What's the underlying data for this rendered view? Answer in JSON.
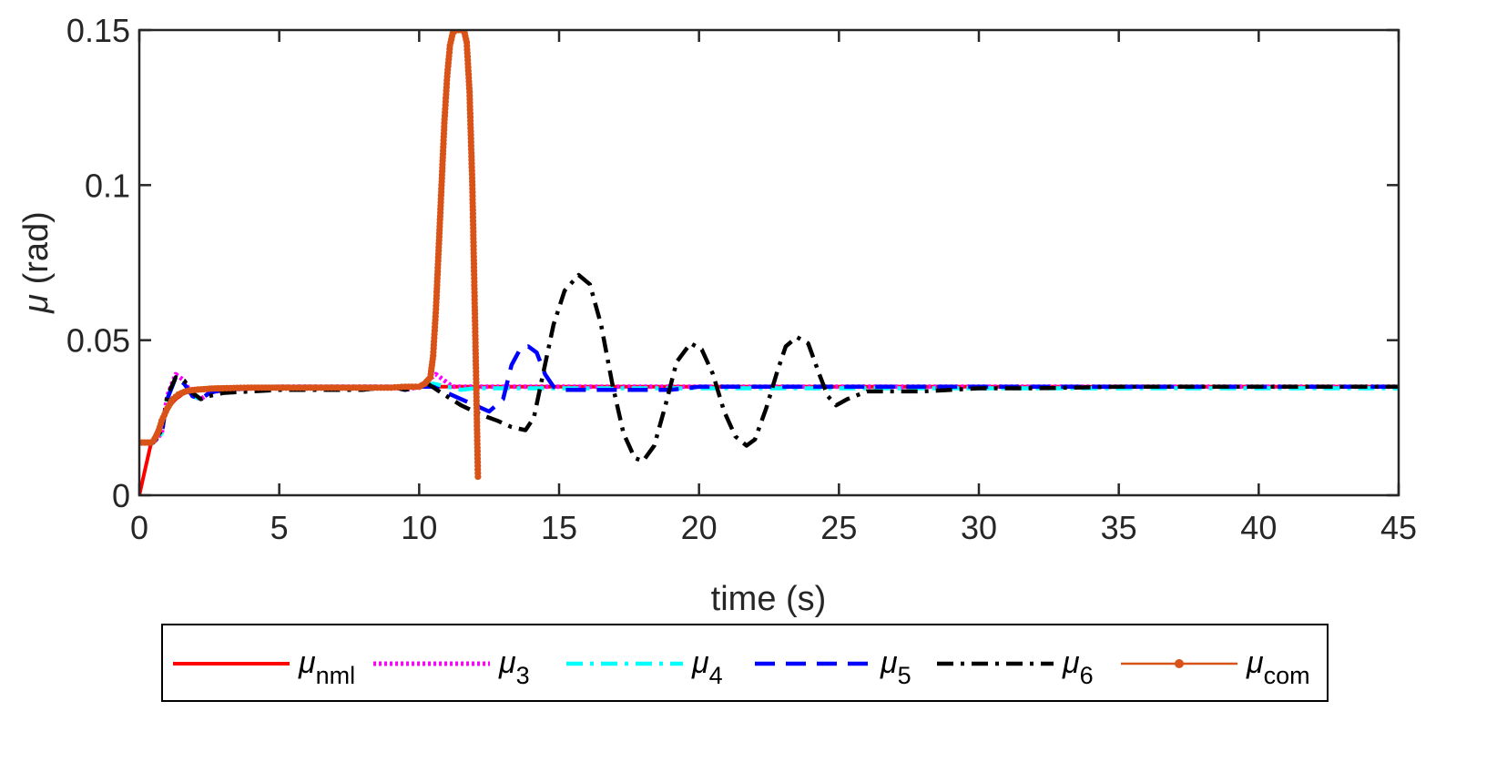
{
  "chart_data": {
    "type": "line",
    "xlabel": "time (s)",
    "ylabel_symbol": "μ",
    "ylabel_unit": " (rad)",
    "xlim": [
      0,
      45
    ],
    "ylim": [
      0,
      0.15
    ],
    "xticks": [
      0,
      5,
      10,
      15,
      20,
      25,
      30,
      35,
      40,
      45
    ],
    "xtick_labels": [
      "0",
      "5",
      "10",
      "15",
      "20",
      "25",
      "30",
      "35",
      "40",
      "45"
    ],
    "yticks": [
      0,
      0.05,
      0.1,
      0.15
    ],
    "ytick_labels": [
      "0",
      "0.05",
      "0.1",
      "0.15"
    ],
    "grid": false,
    "legend_position": "bottom, outside, horizontal",
    "series": [
      {
        "name": "μnml",
        "legend_base": "μ",
        "legend_sub": "nml",
        "color": "#ff0000",
        "style": "solid",
        "x": [
          0,
          0.2,
          0.4,
          0.7,
          1.0,
          1.3,
          1.6,
          2.0,
          2.5,
          3,
          4,
          5,
          6,
          7,
          8,
          9,
          10,
          10.5,
          11,
          11.5,
          12,
          12.5,
          13,
          14,
          15,
          16,
          17,
          18,
          19,
          20,
          22,
          24,
          26,
          28,
          30,
          35,
          40,
          45
        ],
        "y": [
          0,
          0.008,
          0.016,
          0.022,
          0.028,
          0.031,
          0.033,
          0.034,
          0.0345,
          0.0348,
          0.035,
          0.035,
          0.035,
          0.035,
          0.035,
          0.035,
          0.035,
          0.035,
          0.035,
          0.035,
          0.035,
          0.035,
          0.035,
          0.035,
          0.035,
          0.035,
          0.035,
          0.035,
          0.035,
          0.035,
          0.035,
          0.035,
          0.035,
          0.035,
          0.035,
          0.035,
          0.035,
          0.035
        ]
      },
      {
        "name": "μ3",
        "legend_base": "μ",
        "legend_sub": "3",
        "color": "#ff00ff",
        "style": "dotted",
        "x": [
          0,
          0.3,
          0.5,
          0.8,
          1.0,
          1.3,
          1.6,
          1.9,
          2.2,
          2.5,
          3,
          4,
          5,
          6,
          7,
          8,
          9,
          9.5,
          10,
          10.3,
          10.6,
          10.9,
          11.2,
          11.6,
          12,
          13,
          14,
          15,
          16,
          17,
          18,
          19,
          20,
          22,
          24,
          26,
          28,
          30,
          35,
          40,
          45
        ],
        "y": [
          0.017,
          0.017,
          0.017,
          0.02,
          0.032,
          0.039,
          0.037,
          0.032,
          0.031,
          0.033,
          0.034,
          0.0345,
          0.035,
          0.035,
          0.035,
          0.035,
          0.035,
          0.034,
          0.035,
          0.037,
          0.039,
          0.037,
          0.035,
          0.035,
          0.035,
          0.035,
          0.035,
          0.035,
          0.035,
          0.035,
          0.035,
          0.035,
          0.035,
          0.035,
          0.035,
          0.035,
          0.035,
          0.035,
          0.035,
          0.035,
          0.035
        ]
      },
      {
        "name": "μ4",
        "legend_base": "μ",
        "legend_sub": "4",
        "color": "#00ffff",
        "style": "dashdot",
        "x": [
          0,
          0.3,
          0.5,
          0.8,
          1.0,
          1.3,
          1.6,
          1.9,
          2.2,
          2.5,
          3,
          4,
          5,
          6,
          7,
          8,
          9,
          9.5,
          10,
          10.5,
          11,
          11.5,
          12,
          13,
          14,
          15,
          16,
          18,
          20,
          22,
          24,
          26,
          28,
          30,
          35,
          40,
          45
        ],
        "y": [
          0.017,
          0.017,
          0.017,
          0.02,
          0.031,
          0.038,
          0.036,
          0.032,
          0.031,
          0.033,
          0.034,
          0.0345,
          0.035,
          0.035,
          0.035,
          0.035,
          0.035,
          0.034,
          0.035,
          0.036,
          0.035,
          0.034,
          0.0345,
          0.0345,
          0.0345,
          0.0345,
          0.0345,
          0.0345,
          0.0345,
          0.0345,
          0.0345,
          0.0345,
          0.0345,
          0.0345,
          0.0345,
          0.0345,
          0.0345
        ]
      },
      {
        "name": "μ5",
        "legend_base": "μ",
        "legend_sub": "5",
        "color": "#0000ff",
        "style": "dashed",
        "x": [
          0,
          0.3,
          0.5,
          0.8,
          1.0,
          1.3,
          1.6,
          1.9,
          2.2,
          2.5,
          3,
          4,
          5,
          6,
          7,
          8,
          9,
          9.5,
          10,
          10.5,
          11,
          11.5,
          12,
          12.5,
          13,
          13.3,
          13.6,
          13.9,
          14.2,
          14.5,
          14.8,
          15.2,
          15.6,
          16,
          17,
          18,
          19,
          20,
          22,
          24,
          26,
          28,
          30,
          35,
          40,
          45
        ],
        "y": [
          0.017,
          0.017,
          0.017,
          0.02,
          0.031,
          0.038,
          0.036,
          0.032,
          0.031,
          0.033,
          0.034,
          0.0345,
          0.035,
          0.035,
          0.035,
          0.035,
          0.035,
          0.034,
          0.035,
          0.035,
          0.033,
          0.031,
          0.029,
          0.027,
          0.031,
          0.042,
          0.047,
          0.048,
          0.046,
          0.039,
          0.035,
          0.034,
          0.034,
          0.034,
          0.034,
          0.034,
          0.034,
          0.035,
          0.035,
          0.035,
          0.035,
          0.035,
          0.035,
          0.035,
          0.035,
          0.035
        ]
      },
      {
        "name": "μ6",
        "legend_base": "μ",
        "legend_sub": "6",
        "color": "#000000",
        "style": "dashdot",
        "x": [
          0,
          0.3,
          0.5,
          0.8,
          1.0,
          1.3,
          1.6,
          1.9,
          2.2,
          2.5,
          3,
          4,
          5,
          6,
          7,
          8,
          9,
          9.5,
          10,
          10.3,
          10.8,
          11.5,
          12.2,
          12.8,
          13.3,
          13.8,
          14.1,
          14.4,
          14.8,
          15.2,
          15.7,
          16.1,
          16.5,
          16.9,
          17.3,
          17.7,
          18.0,
          18.4,
          18.8,
          19.2,
          19.7,
          20.1,
          20.5,
          20.9,
          21.3,
          21.7,
          22.0,
          22.4,
          22.8,
          23.1,
          23.5,
          23.9,
          24.3,
          24.6,
          24.9,
          25.3,
          26,
          27,
          28,
          29,
          30,
          32,
          35,
          40,
          45
        ],
        "y": [
          0.017,
          0.017,
          0.017,
          0.021,
          0.032,
          0.038,
          0.037,
          0.033,
          0.031,
          0.032,
          0.033,
          0.0335,
          0.034,
          0.034,
          0.034,
          0.034,
          0.035,
          0.034,
          0.035,
          0.036,
          0.033,
          0.029,
          0.026,
          0.024,
          0.022,
          0.021,
          0.025,
          0.038,
          0.055,
          0.066,
          0.071,
          0.068,
          0.055,
          0.036,
          0.02,
          0.012,
          0.011,
          0.016,
          0.029,
          0.043,
          0.049,
          0.047,
          0.039,
          0.027,
          0.019,
          0.016,
          0.018,
          0.028,
          0.04,
          0.048,
          0.051,
          0.049,
          0.039,
          0.032,
          0.029,
          0.031,
          0.0335,
          0.0335,
          0.0335,
          0.034,
          0.0345,
          0.0345,
          0.035,
          0.035,
          0.035
        ]
      },
      {
        "name": "μcom",
        "legend_base": "μ",
        "legend_sub": "com",
        "color": "#d95319",
        "style": "solid-marker",
        "x": [
          0,
          0.1,
          0.2,
          0.3,
          0.4,
          0.5,
          0.6,
          0.7,
          0.8,
          0.9,
          1.0,
          1.1,
          1.2,
          1.4,
          1.6,
          1.8,
          2.0,
          2.3,
          2.6,
          3.0,
          3.5,
          4,
          5,
          6,
          7,
          8,
          9,
          9.5,
          10,
          10.2,
          10.4,
          10.5,
          10.6,
          10.7,
          10.8,
          10.9,
          11.0,
          11.1,
          11.2,
          11.3,
          11.4,
          11.5,
          11.6,
          11.7,
          11.8,
          11.9,
          12.0,
          12.1
        ],
        "y": [
          0.017,
          0.017,
          0.017,
          0.017,
          0.017,
          0.0175,
          0.019,
          0.021,
          0.024,
          0.026,
          0.028,
          0.0295,
          0.031,
          0.0325,
          0.0333,
          0.0338,
          0.034,
          0.0342,
          0.0344,
          0.0345,
          0.0346,
          0.0347,
          0.0347,
          0.0347,
          0.0347,
          0.0347,
          0.0347,
          0.035,
          0.035,
          0.036,
          0.038,
          0.045,
          0.06,
          0.08,
          0.1,
          0.12,
          0.135,
          0.145,
          0.149,
          0.15,
          0.15,
          0.15,
          0.15,
          0.146,
          0.13,
          0.1,
          0.055,
          0.006
        ]
      }
    ]
  }
}
